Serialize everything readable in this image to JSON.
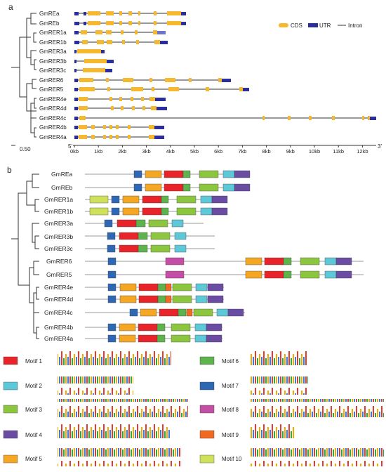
{
  "panel_a": {
    "label": "a",
    "genes": [
      "GmREa",
      "GmREb",
      "GmRER1a",
      "GmRER1b",
      "GmRER3a",
      "GmRER3b",
      "GmRER3c",
      "GmRER6",
      "GmRER5",
      "GmRER4e",
      "GmRER4d",
      "GmRER4c",
      "GmRER4b",
      "GmRER4a"
    ],
    "legend": {
      "cds": "CDS",
      "utr": "UTR",
      "intron": "Intron"
    },
    "scale_label": "0.50",
    "axis_start": "5'",
    "axis_end": "3'",
    "axis_ticks": [
      "0kb",
      "1kb",
      "2kb",
      "3kb",
      "4kb",
      "5kb",
      "6kb",
      "7kb",
      "8kb",
      "9kb",
      "10kb",
      "11kb",
      "12kb"
    ],
    "colors": {
      "cds": "#F5B82E",
      "utr": "#2B2F9E",
      "intron": "#333333"
    }
  },
  "panel_b": {
    "label": "b",
    "genes": [
      "GmREa",
      "GmREb",
      "GmRER1a",
      "GmRER1b",
      "GmRER3a",
      "GmRER3b",
      "GmRER3c",
      "GmRER6",
      "GmRER5",
      "GmRER4e",
      "GmRER4d",
      "GmRER4c",
      "GmRER4b",
      "GmRER4a"
    ]
  },
  "motifs": [
    {
      "label": "Motif 1",
      "color": "#E8242A"
    },
    {
      "label": "Motif 2",
      "color": "#5CC8D8"
    },
    {
      "label": "Motif 3",
      "color": "#8CC63F"
    },
    {
      "label": "Motif 4",
      "color": "#6A4CA3"
    },
    {
      "label": "Motif 5",
      "color": "#F5A623"
    },
    {
      "label": "Motif 6",
      "color": "#5DB34C"
    },
    {
      "label": "Motif 7",
      "color": "#2E68B5"
    },
    {
      "label": "Motif 8",
      "color": "#C44DA6"
    },
    {
      "label": "Motif 9",
      "color": "#F26A21"
    },
    {
      "label": "Motif 10",
      "color": "#CFE15A"
    }
  ]
}
